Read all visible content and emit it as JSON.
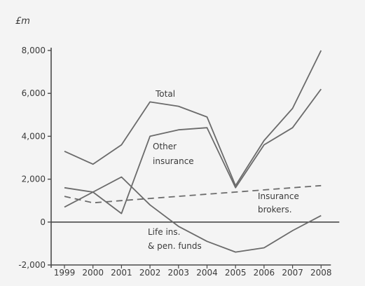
{
  "chart_data": {
    "type": "line",
    "unit_label": "£m",
    "x": [
      "1999",
      "2000",
      "2001",
      "2002",
      "2003",
      "2004",
      "2005",
      "2006",
      "2007",
      "2008"
    ],
    "ylim": [
      -2000,
      8000
    ],
    "yticks": [
      "-2,000",
      "0",
      "2,000",
      "4,000",
      "6,000",
      "8,000"
    ],
    "grid": false,
    "series": [
      {
        "name": "Total",
        "style": "solid",
        "values": [
          3300,
          2700,
          3600,
          5600,
          5400,
          4900,
          1700,
          3800,
          5300,
          8000
        ]
      },
      {
        "name": "Other insurance",
        "style": "solid",
        "values": [
          1600,
          1400,
          400,
          4000,
          4300,
          4400,
          1600,
          3600,
          4400,
          6200
        ]
      },
      {
        "name": "Insurance brokers.",
        "style": "dashed",
        "values": [
          1200,
          900,
          1000,
          1100,
          1200,
          1300,
          1400,
          1500,
          1600,
          1700
        ]
      },
      {
        "name": "Life ins. & pen. funds",
        "style": "solid",
        "values": [
          700,
          1400,
          2100,
          800,
          -200,
          -900,
          -1400,
          -1200,
          -400,
          300
        ]
      }
    ],
    "annotations": {
      "total": "Total",
      "other_line1": "Other",
      "other_line2": "insurance",
      "brokers_line1": "Insurance",
      "brokers_line2": "brokers.",
      "life_line1": "Life ins.",
      "life_line2": "& pen. funds"
    },
    "colors": {
      "line": "#6b6b6b",
      "axis": "#4a4a4a",
      "text": "#3a3a3a"
    }
  }
}
